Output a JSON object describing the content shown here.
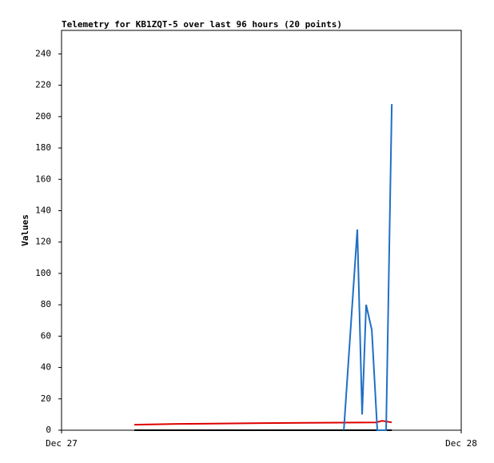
{
  "chart_data": {
    "type": "line",
    "title": "Telemetry for KB1ZQT-5 over last 96 hours (20 points)",
    "y_label": "Values",
    "xlim": [
      0,
      24
    ],
    "xticks": [
      {
        "value": 0,
        "label": "Dec 27"
      },
      {
        "value": 24,
        "label": "Dec 28"
      }
    ],
    "ylim": [
      0,
      255
    ],
    "yticks": [
      0,
      20,
      40,
      60,
      80,
      100,
      120,
      140,
      160,
      180,
      200,
      220,
      240
    ],
    "series": [
      {
        "color": "#000000",
        "x": [
          4.37,
          19.83
        ],
        "values": [
          0,
          0
        ]
      },
      {
        "color": "#dd0000",
        "x": [
          4.37,
          6.96,
          12.05,
          18.87,
          19.25,
          19.83
        ],
        "values": [
          3.5,
          4,
          4.5,
          5,
          6,
          5
        ]
      },
      {
        "color": "#1f6fc5",
        "x": [
          16.95,
          17.76,
          18.05,
          18.29,
          18.63,
          18.96,
          19.49,
          19.83
        ],
        "values": [
          0,
          128,
          10,
          80,
          64,
          0,
          0,
          208
        ]
      }
    ]
  }
}
